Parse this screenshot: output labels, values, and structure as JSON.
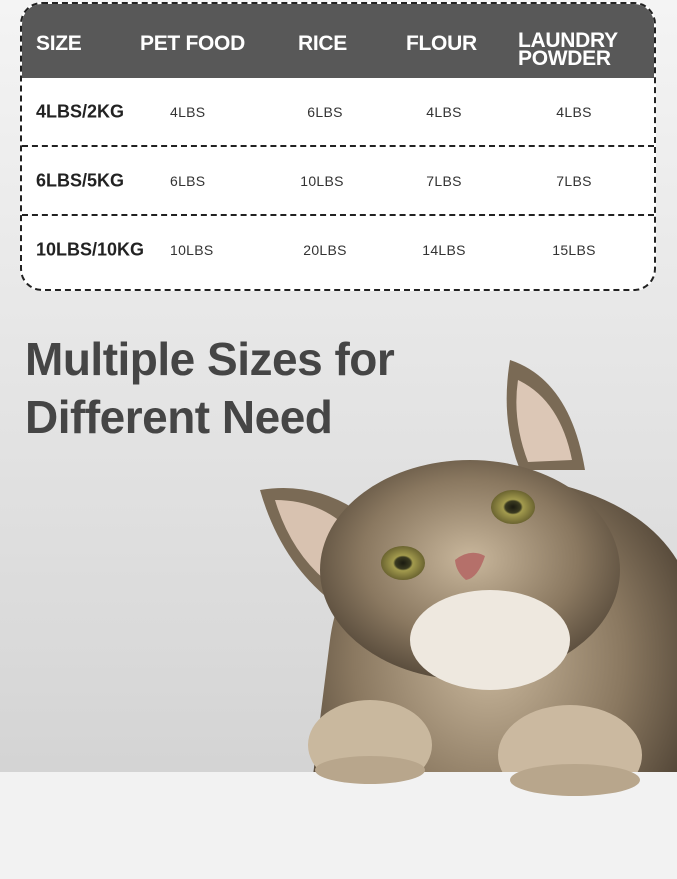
{
  "table": {
    "headers": [
      "SIZE",
      "PET FOOD",
      "RICE",
      "FLOUR",
      "LAUNDRY\nPOWDER"
    ],
    "header_laundry_line1": "LAUNDRY",
    "header_laundry_line2": "POWDER",
    "rows": [
      {
        "size": "4LBS/2KG",
        "pet_food": "4LBS",
        "rice": "6LBS",
        "flour": "4LBS",
        "laundry": "4LBS"
      },
      {
        "size": "6LBS/5KG",
        "pet_food": "6LBS",
        "rice": "10LBS",
        "flour": "7LBS",
        "laundry": "7LBS"
      },
      {
        "size": "10LBS/10KG",
        "pet_food": "10LBS",
        "rice": "20LBS",
        "flour": "14LBS",
        "laundry": "15LBS"
      }
    ],
    "header_color": "#585858"
  },
  "heading": {
    "line1": "Multiple Sizes for",
    "line2": "Different Need"
  },
  "image": {
    "subject": "tabby-cat-photo"
  }
}
